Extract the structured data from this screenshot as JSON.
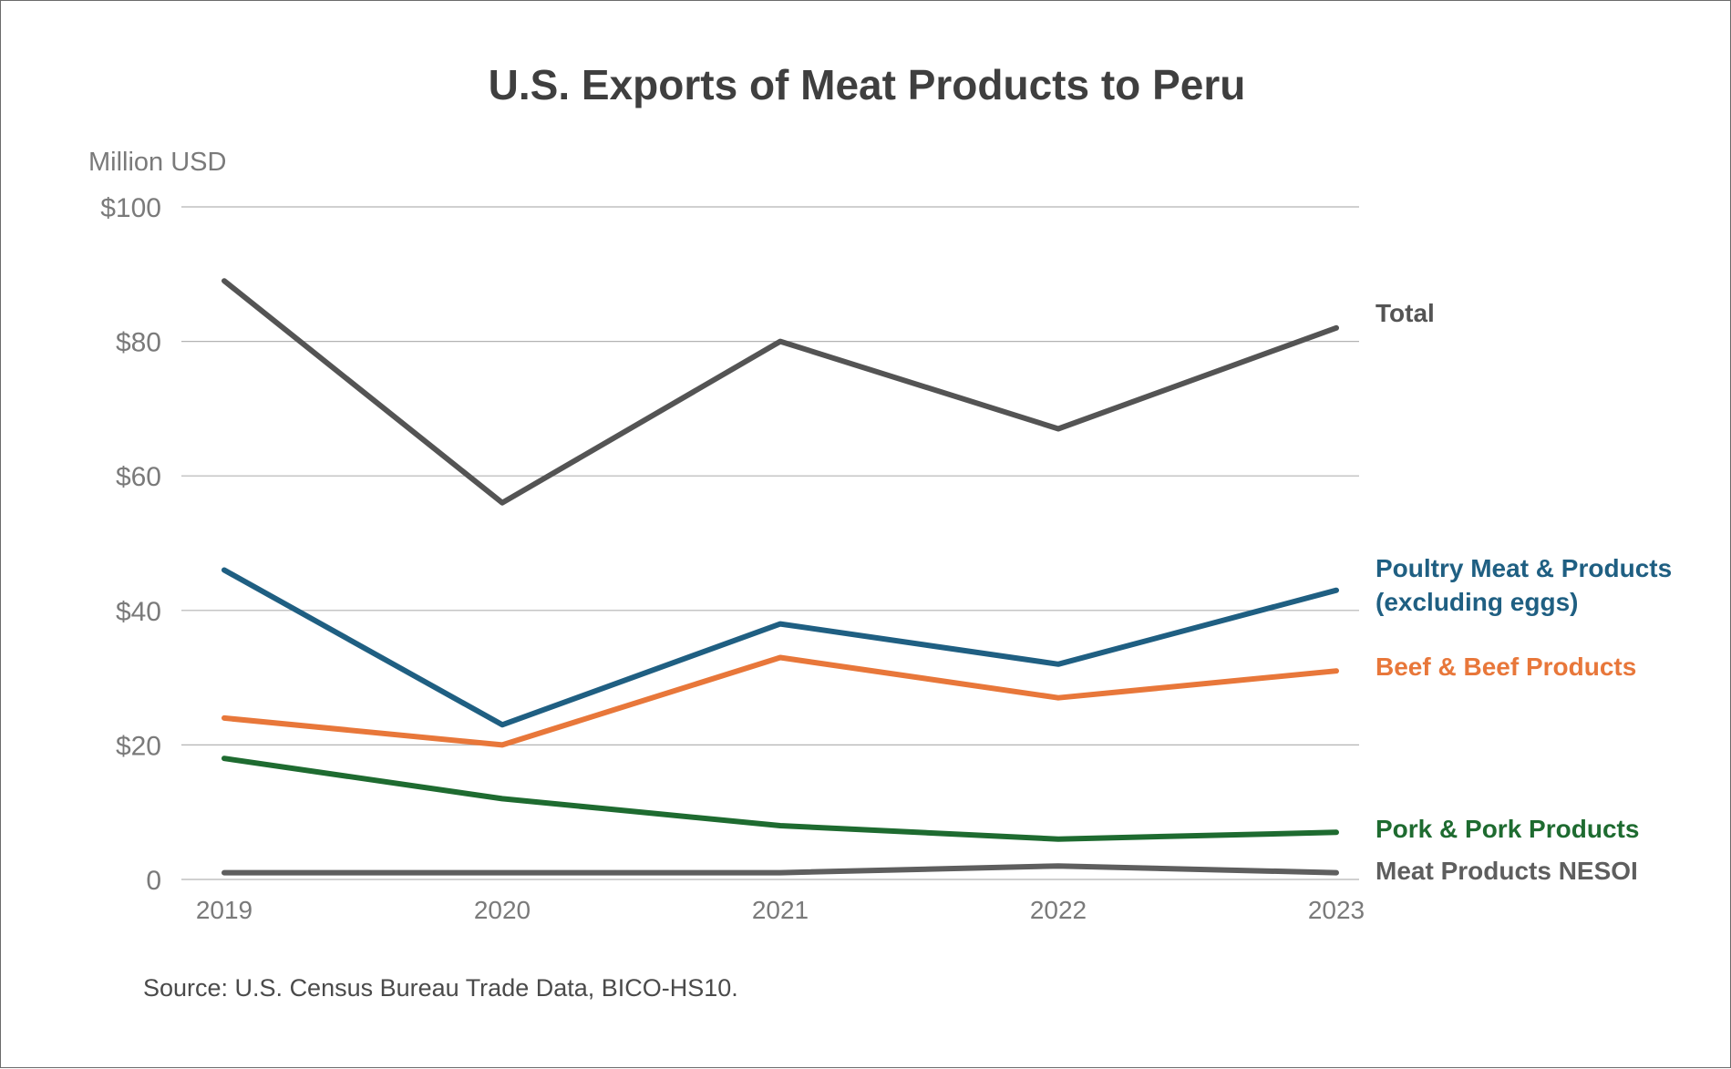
{
  "chart_data": {
    "type": "line",
    "title": "U.S. Exports of Meat Products to Peru",
    "ylabel": "Million USD",
    "xlabel": "",
    "source": "Source: U.S. Census Bureau Trade Data, BICO-HS10.",
    "categories": [
      "2019",
      "2020",
      "2021",
      "2022",
      "2023"
    ],
    "ylim": [
      0,
      100
    ],
    "yticks": [
      0,
      20,
      40,
      60,
      80,
      100
    ],
    "ytick_labels": [
      "0",
      "$20",
      "$40",
      "$60",
      "$80",
      "$100"
    ],
    "grid": true,
    "series": [
      {
        "name": "Total",
        "label_lines": [
          "Total"
        ],
        "color": "#545454",
        "values": [
          89,
          56,
          80,
          67,
          82
        ]
      },
      {
        "name": "Poultry Meat & Products (excluding eggs)",
        "label_lines": [
          "Poultry Meat & Products",
          "(excluding eggs)"
        ],
        "color": "#1f5f82",
        "values": [
          46,
          23,
          38,
          32,
          43
        ]
      },
      {
        "name": "Beef & Beef Products",
        "label_lines": [
          "Beef & Beef Products"
        ],
        "color": "#e8773a",
        "values": [
          24,
          20,
          33,
          27,
          31
        ]
      },
      {
        "name": "Pork & Pork Products",
        "label_lines": [
          "Pork & Pork Products"
        ],
        "color": "#1e6b30",
        "values": [
          18,
          12,
          8,
          6,
          7
        ]
      },
      {
        "name": "Meat Products NESOI",
        "label_lines": [
          "Meat Products NESOI"
        ],
        "color": "#5e5e5e",
        "values": [
          1,
          1,
          1,
          2,
          1
        ]
      }
    ]
  }
}
